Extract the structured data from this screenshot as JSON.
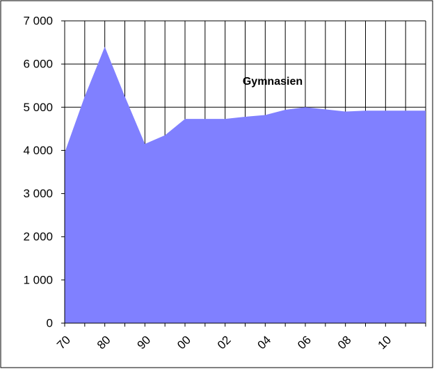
{
  "chart_data": {
    "type": "area",
    "annotation": "Gymnasien",
    "categories": [
      "70",
      null,
      "80",
      null,
      "90",
      null,
      "00",
      null,
      "02",
      null,
      "04",
      null,
      "06",
      null,
      "08",
      null,
      "10",
      null
    ],
    "series": [
      {
        "color": "#8080ff",
        "values": [
          3950,
          5250,
          6400,
          5250,
          4150,
          4350,
          4730,
          4730,
          4730,
          4780,
          4820,
          4940,
          5000,
          4950,
          4900,
          4920,
          4920,
          4920
        ]
      }
    ],
    "ylim": [
      0,
      7000
    ],
    "yticks": [
      0,
      {
        "value": 1000,
        "label": "1 000"
      },
      {
        "value": 2000,
        "label": "2 000"
      },
      {
        "value": 3000,
        "label": "3 000"
      },
      {
        "value": 4000,
        "label": "4 000"
      },
      {
        "value": 5000,
        "label": "5 000"
      },
      {
        "value": 6000,
        "label": "6 000"
      },
      {
        "value": 7000,
        "label": "7 000"
      }
    ],
    "grid": true
  }
}
